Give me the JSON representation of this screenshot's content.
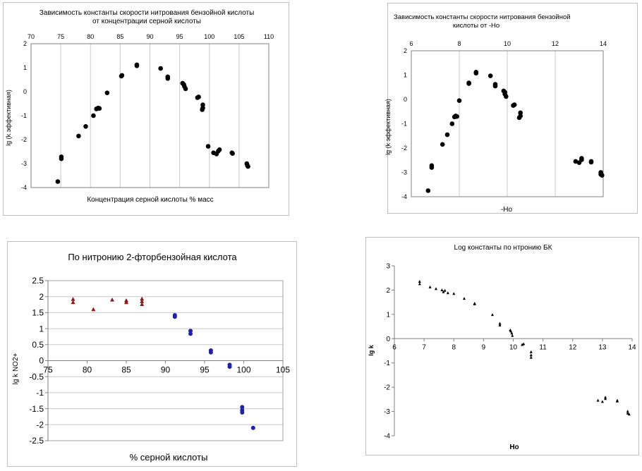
{
  "chart_data": [
    {
      "type": "scatter",
      "title": "Зависимость константы скорости нитрования бензойной кислоты",
      "subtitle": "от концентрации серной кислоты",
      "xlabel": "Концентрация серной кислоты % масс",
      "ylabel": "lg (k эффективная)",
      "xlim": [
        70,
        110
      ],
      "ylim": [
        -4,
        2
      ],
      "xticks": [
        "70",
        "75",
        "80",
        "85",
        "90",
        "95",
        "100",
        "105",
        "110"
      ],
      "yticks": [
        "2",
        "1",
        "0",
        "-1",
        "-2",
        "-3",
        "-4"
      ],
      "x_axis_position": "top",
      "grid": "vertical",
      "points": [
        [
          74.5,
          -3.75
        ],
        [
          75.1,
          -2.8
        ],
        [
          75.1,
          -2.72
        ],
        [
          78.0,
          -1.85
        ],
        [
          79.2,
          -1.45
        ],
        [
          80.5,
          -1.0
        ],
        [
          81.0,
          -0.72
        ],
        [
          81.5,
          -0.7
        ],
        [
          81.3,
          -0.68
        ],
        [
          82.8,
          -0.05
        ],
        [
          85.2,
          0.65
        ],
        [
          85.3,
          0.68
        ],
        [
          87.8,
          1.08
        ],
        [
          87.8,
          1.12
        ],
        [
          91.8,
          0.97
        ],
        [
          93.0,
          0.62
        ],
        [
          93.0,
          0.55
        ],
        [
          95.5,
          0.35
        ],
        [
          95.7,
          0.3
        ],
        [
          95.8,
          0.22
        ],
        [
          96.0,
          0.12
        ],
        [
          98.0,
          -0.25
        ],
        [
          98.2,
          -0.22
        ],
        [
          98.9,
          -0.55
        ],
        [
          98.9,
          -0.68
        ],
        [
          98.8,
          -0.75
        ],
        [
          99.8,
          -2.28
        ],
        [
          100.7,
          -2.55
        ],
        [
          101.2,
          -2.6
        ],
        [
          101.5,
          -2.48
        ],
        [
          101.7,
          -2.42
        ],
        [
          103.8,
          -2.55
        ],
        [
          103.9,
          -2.58
        ],
        [
          106.3,
          -3.0
        ],
        [
          106.4,
          -3.08
        ],
        [
          106.5,
          -3.12
        ]
      ]
    },
    {
      "type": "scatter",
      "title": "Зависимость константы скорости нитрования бензойной",
      "subtitle": "кислоты от -Ho",
      "xlabel": "-Ho",
      "ylabel": "lg (k эффективная)",
      "xlim": [
        6,
        14
      ],
      "ylim": [
        -4,
        2
      ],
      "xticks": [
        "6",
        "8",
        "10",
        "12",
        "14"
      ],
      "yticks": [
        "2",
        "1",
        "0",
        "-1",
        "-2",
        "-3",
        "-4"
      ],
      "x_axis_position": "top",
      "grid": "vertical",
      "points": [
        [
          6.7,
          -3.75
        ],
        [
          6.85,
          -2.8
        ],
        [
          6.85,
          -2.72
        ],
        [
          7.3,
          -1.85
        ],
        [
          7.5,
          -1.45
        ],
        [
          7.7,
          -1.0
        ],
        [
          7.8,
          -0.72
        ],
        [
          7.9,
          -0.7
        ],
        [
          7.85,
          -0.68
        ],
        [
          8.0,
          -0.05
        ],
        [
          8.4,
          0.65
        ],
        [
          8.4,
          0.68
        ],
        [
          8.7,
          1.08
        ],
        [
          8.7,
          1.12
        ],
        [
          9.3,
          0.97
        ],
        [
          9.5,
          0.62
        ],
        [
          9.5,
          0.55
        ],
        [
          9.85,
          0.35
        ],
        [
          9.9,
          0.3
        ],
        [
          9.9,
          0.22
        ],
        [
          9.95,
          0.12
        ],
        [
          10.25,
          -0.25
        ],
        [
          10.3,
          -0.22
        ],
        [
          10.55,
          -0.55
        ],
        [
          10.55,
          -0.68
        ],
        [
          10.5,
          -0.75
        ],
        [
          12.85,
          -2.55
        ],
        [
          13.0,
          -2.6
        ],
        [
          13.1,
          -2.48
        ],
        [
          13.1,
          -2.42
        ],
        [
          13.5,
          -2.55
        ],
        [
          13.5,
          -2.58
        ],
        [
          13.9,
          -3.0
        ],
        [
          13.9,
          -3.08
        ],
        [
          13.95,
          -3.12
        ]
      ]
    },
    {
      "type": "scatter",
      "title": "По нитронию 2-фторбензойная кислота",
      "xlabel": "% серной кислоты",
      "ylabel": "lg k NO2+",
      "xlim": [
        75,
        105
      ],
      "ylim": [
        -2.5,
        2.5
      ],
      "xticks": [
        "75",
        "80",
        "85",
        "90",
        "95",
        "100",
        "105"
      ],
      "yticks": [
        "2.5",
        "2",
        "1.5",
        "1",
        "0.5",
        "0",
        "-0.5",
        "-1",
        "-1.5",
        "-2",
        "-2.5"
      ],
      "x_axis_position": "zero",
      "grid": "horizontal",
      "series": [
        {
          "color": "#8b1a1a",
          "marker": "triangle",
          "points": [
            [
              78.2,
              1.92
            ],
            [
              78.2,
              1.82
            ],
            [
              80.8,
              1.6
            ],
            [
              83.2,
              1.9
            ],
            [
              85.0,
              1.88
            ],
            [
              85.0,
              1.82
            ],
            [
              87.0,
              1.93
            ],
            [
              87.0,
              1.85
            ],
            [
              87.0,
              1.76
            ]
          ]
        },
        {
          "color": "#1f1fb0",
          "marker": "circle",
          "points": [
            [
              91.2,
              1.42
            ],
            [
              91.2,
              1.37
            ],
            [
              93.2,
              0.93
            ],
            [
              93.2,
              0.84
            ],
            [
              95.8,
              0.32
            ],
            [
              95.8,
              0.26
            ],
            [
              98.2,
              -0.13
            ],
            [
              98.2,
              -0.19
            ],
            [
              99.8,
              -1.45
            ],
            [
              99.8,
              -1.55
            ],
            [
              99.8,
              -1.62
            ],
            [
              101.2,
              -2.1
            ]
          ]
        }
      ]
    },
    {
      "type": "scatter",
      "title": "Log константы по нтронию БК",
      "xlabel": "Ho",
      "ylabel": "lg k",
      "xlim": [
        6,
        14
      ],
      "ylim": [
        -4,
        3
      ],
      "xticks": [
        "6",
        "7",
        "8",
        "9",
        "10",
        "11",
        "12",
        "13",
        "14"
      ],
      "yticks": [
        "3",
        "2",
        "1",
        "0",
        "-1",
        "-2",
        "-3",
        "-4"
      ],
      "x_axis_position": "zero",
      "grid": "none",
      "points": [
        [
          6.85,
          2.35
        ],
        [
          6.85,
          2.25
        ],
        [
          7.2,
          2.12
        ],
        [
          7.4,
          2.05
        ],
        [
          7.6,
          2.0
        ],
        [
          7.7,
          1.98
        ],
        [
          7.65,
          1.92
        ],
        [
          7.8,
          1.88
        ],
        [
          8.0,
          1.85
        ],
        [
          8.35,
          1.65
        ],
        [
          8.7,
          1.45
        ],
        [
          8.7,
          1.42
        ],
        [
          9.3,
          0.98
        ],
        [
          9.55,
          0.62
        ],
        [
          9.55,
          0.55
        ],
        [
          9.9,
          0.35
        ],
        [
          9.92,
          0.3
        ],
        [
          9.95,
          0.22
        ],
        [
          9.97,
          0.12
        ],
        [
          10.3,
          -0.25
        ],
        [
          10.35,
          -0.22
        ],
        [
          10.6,
          -0.55
        ],
        [
          10.6,
          -0.68
        ],
        [
          10.6,
          -0.78
        ],
        [
          12.85,
          -2.55
        ],
        [
          13.0,
          -2.6
        ],
        [
          13.1,
          -2.48
        ],
        [
          13.1,
          -2.42
        ],
        [
          13.5,
          -2.55
        ],
        [
          13.5,
          -2.58
        ],
        [
          13.85,
          -3.0
        ],
        [
          13.85,
          -3.08
        ],
        [
          13.9,
          -3.12
        ]
      ]
    }
  ]
}
